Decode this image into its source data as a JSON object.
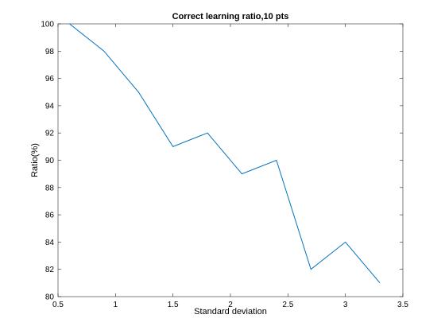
{
  "chart_data": {
    "type": "line",
    "title": "Correct learning ratio,10 pts",
    "xlabel": "Standard deviation",
    "ylabel": "Ratio(%)",
    "xlim": [
      0.5,
      3.5
    ],
    "ylim": [
      80,
      100
    ],
    "xticks": [
      0.5,
      1,
      1.5,
      2,
      2.5,
      3,
      3.5
    ],
    "xtick_labels": [
      "0.5",
      "1",
      "1.5",
      "2",
      "2.5",
      "3",
      "3.5"
    ],
    "yticks": [
      80,
      82,
      84,
      86,
      88,
      90,
      92,
      94,
      96,
      98,
      100
    ],
    "ytick_labels": [
      "80",
      "82",
      "84",
      "86",
      "88",
      "90",
      "92",
      "94",
      "96",
      "98",
      "100"
    ],
    "grid": false,
    "legend": "none",
    "series": [
      {
        "color": "#0072bd",
        "x": [
          0.6,
          0.9,
          1.2,
          1.5,
          1.8,
          2.1,
          2.4,
          2.7,
          3.0,
          3.3
        ],
        "y": [
          100,
          98,
          95,
          91,
          92,
          89,
          90,
          82,
          84,
          81
        ]
      }
    ]
  }
}
